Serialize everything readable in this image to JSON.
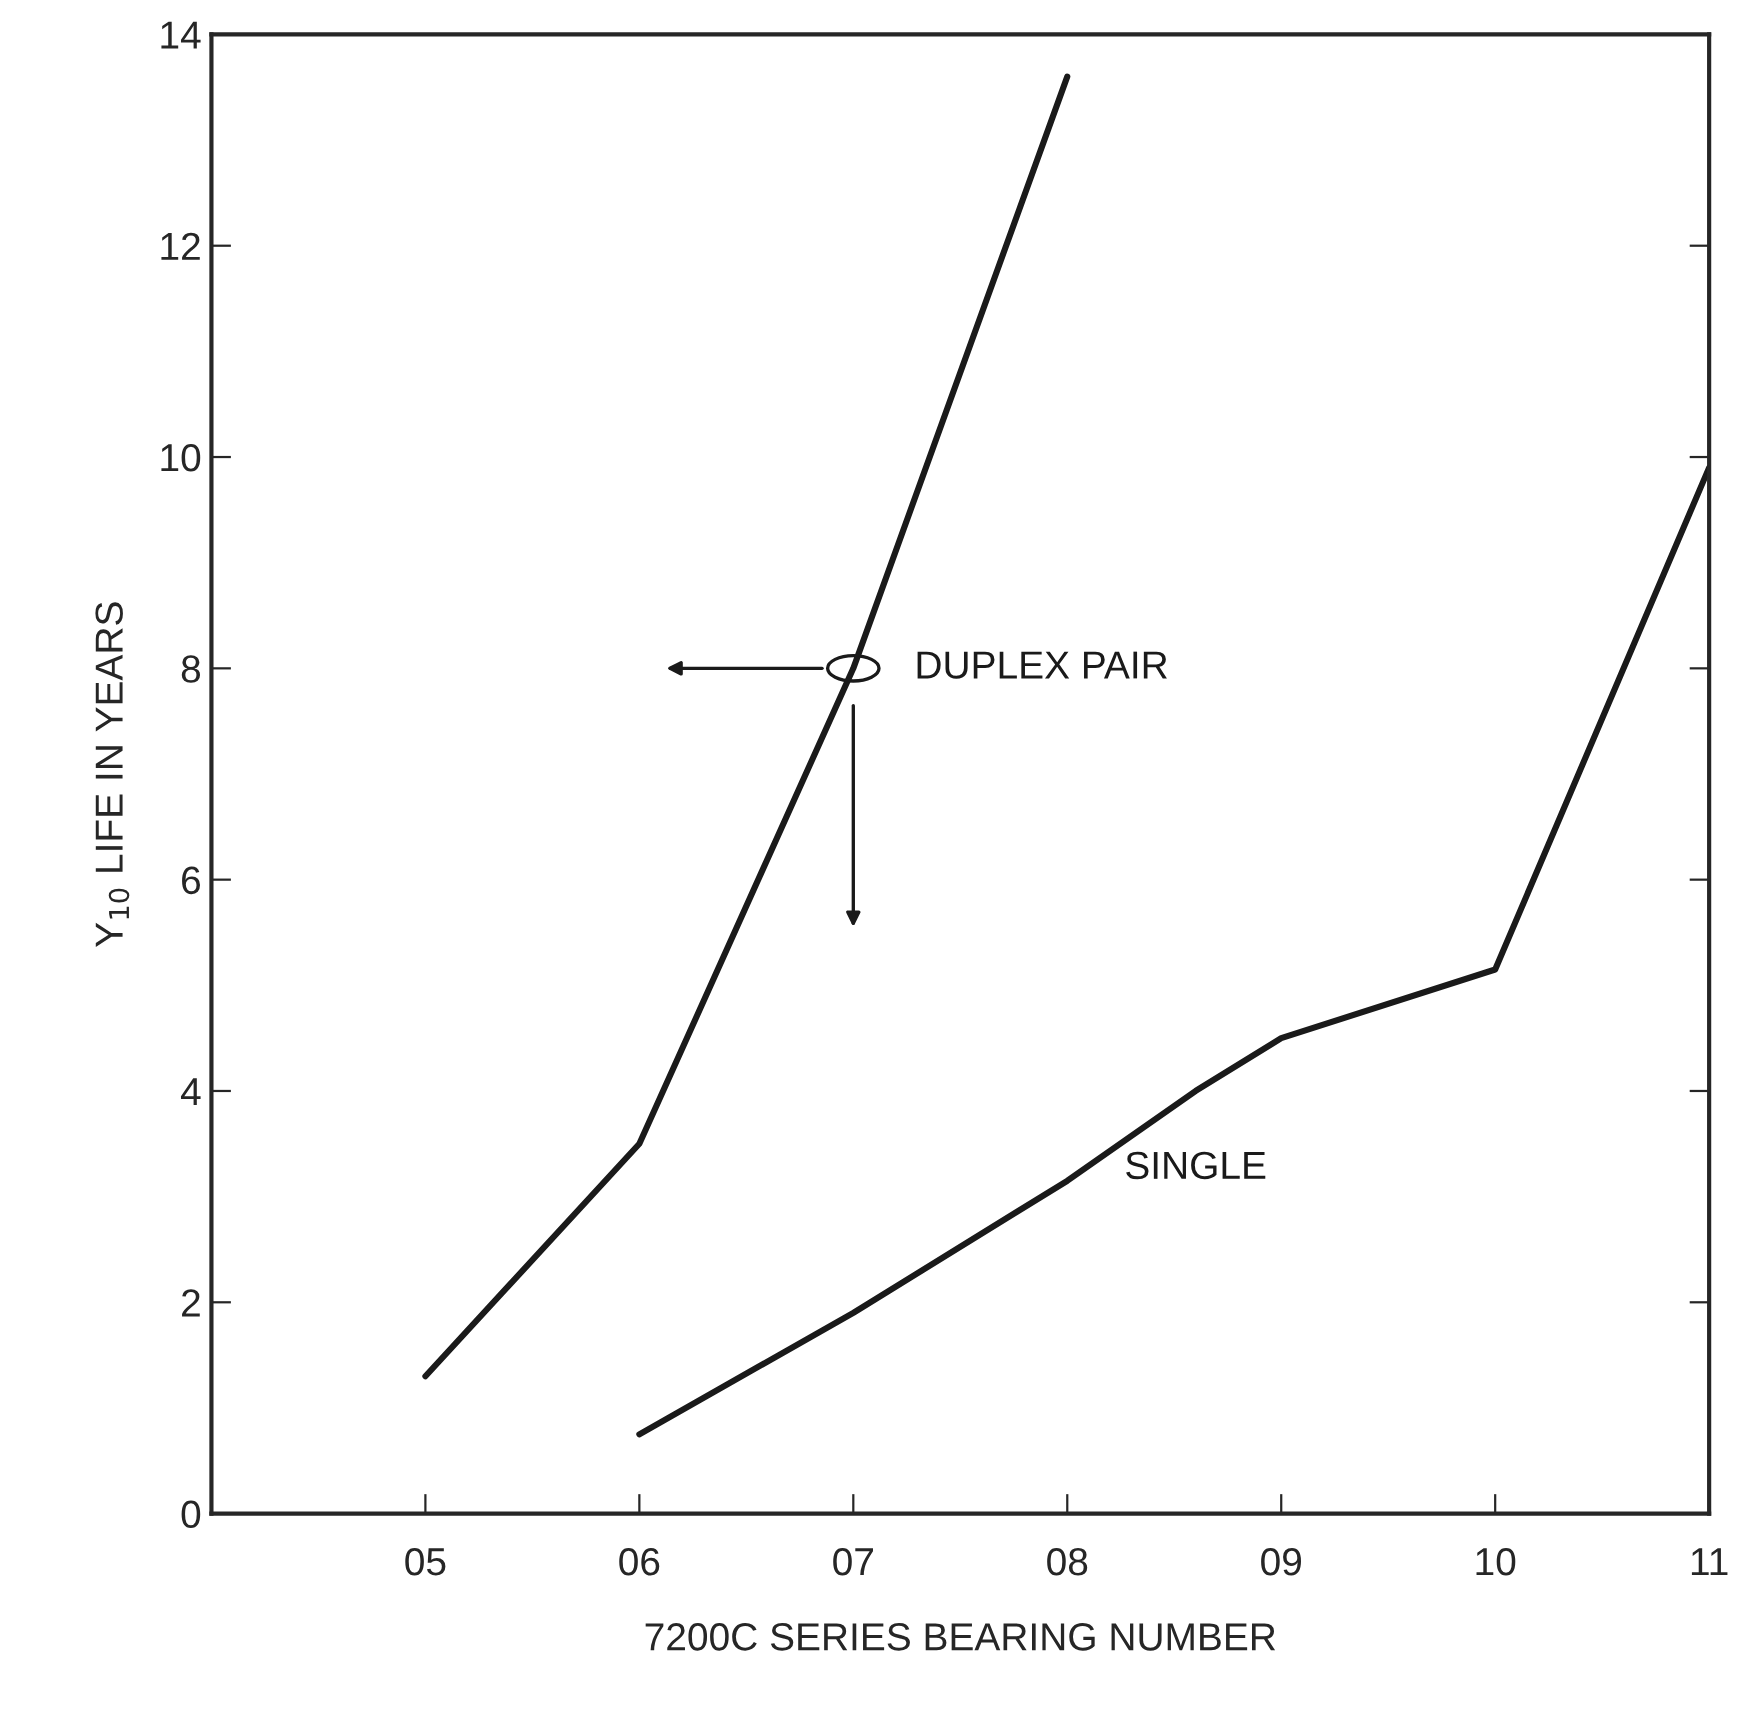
{
  "chart_data": {
    "type": "line",
    "xlabel": "7200C SERIES BEARING NUMBER",
    "ylabel": "Y$_{10}$ LIFE IN YEARS",
    "xlim": [
      4,
      11
    ],
    "xticks": [
      {
        "value": 5,
        "label": "05"
      },
      {
        "value": 6,
        "label": "06"
      },
      {
        "value": 7,
        "label": "07"
      },
      {
        "value": 8,
        "label": "08"
      },
      {
        "value": 9,
        "label": "09"
      },
      {
        "value": 10,
        "label": "10"
      },
      {
        "value": 11,
        "label": "11"
      }
    ],
    "ylim": [
      0,
      14
    ],
    "yticks": [
      0,
      2,
      4,
      6,
      8,
      10,
      12,
      14
    ],
    "grid": false,
    "legend": false,
    "marker": "none",
    "line_style": "solid",
    "series": [
      {
        "name": "DUPLEX PAIR",
        "color": "#1a1a1a",
        "x": [
          5,
          6,
          7,
          8
        ],
        "values": [
          1.3,
          3.5,
          8.0,
          13.6
        ]
      },
      {
        "name": "SINGLE",
        "color": "#1a1a1a",
        "x": [
          6,
          7,
          8,
          8.6,
          9,
          10,
          11
        ],
        "values": [
          0.75,
          1.9,
          3.15,
          4.0,
          4.5,
          5.15,
          9.9
        ]
      }
    ]
  }
}
